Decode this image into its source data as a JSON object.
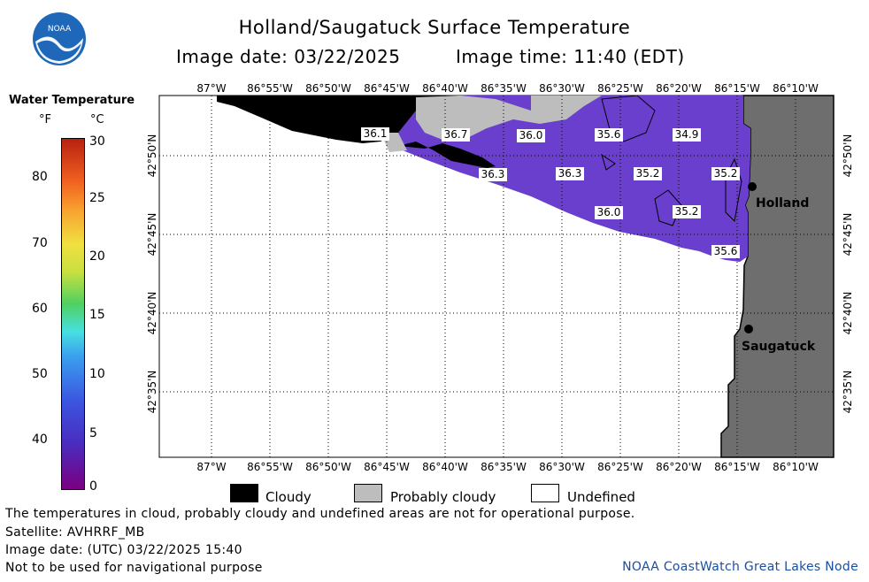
{
  "header": {
    "title": "Holland/Saugatuck Surface Temperature",
    "image_date": "Image date: 03/22/2025",
    "image_time": "Image time: 11:40 (EDT)"
  },
  "logo": {
    "text": "NOAA"
  },
  "scale": {
    "title": "Water Temperature",
    "unit_f": "°F",
    "unit_c": "°C",
    "f_ticks": [
      "80",
      "70",
      "60",
      "50",
      "40"
    ],
    "c_ticks": [
      "30",
      "25",
      "20",
      "15",
      "10",
      "5",
      "0"
    ]
  },
  "map": {
    "lon_labels": [
      "87°W",
      "86°55'W",
      "86°50'W",
      "86°45'W",
      "86°40'W",
      "86°35'W",
      "86°30'W",
      "86°25'W",
      "86°20'W",
      "86°15'W",
      "86°10'W"
    ],
    "lat_labels": [
      "42°50'N",
      "42°45'N",
      "42°40'N",
      "42°35'N"
    ],
    "cities": [
      {
        "name": "Holland"
      },
      {
        "name": "Saugatuck"
      }
    ],
    "temp_labels": [
      "36.1",
      "36.7",
      "36.0",
      "35.6",
      "34.9",
      "36.3",
      "36.3",
      "35.2",
      "35.2",
      "36.0",
      "35.2",
      "35.6"
    ],
    "colors": {
      "water_purple": "#6a3fce",
      "land_gray": "#6e6e6e",
      "cloud_black": "#000000",
      "probably_cloudy_gray": "#bdbdbd"
    }
  },
  "legend": {
    "cloudy": "Cloudy",
    "probably_cloudy": "Probably cloudy",
    "undefined": "Undefined"
  },
  "footer": {
    "line1": "The temperatures in cloud, probably cloudy and undefined areas are not for operational purpose.",
    "line2": "Satellite: AVHRRF_MB",
    "line3": "Image date: (UTC) 03/22/2025  15:40",
    "line4": "Not to be used for navigational purpose",
    "credit": "NOAA CoastWatch Great Lakes Node"
  }
}
